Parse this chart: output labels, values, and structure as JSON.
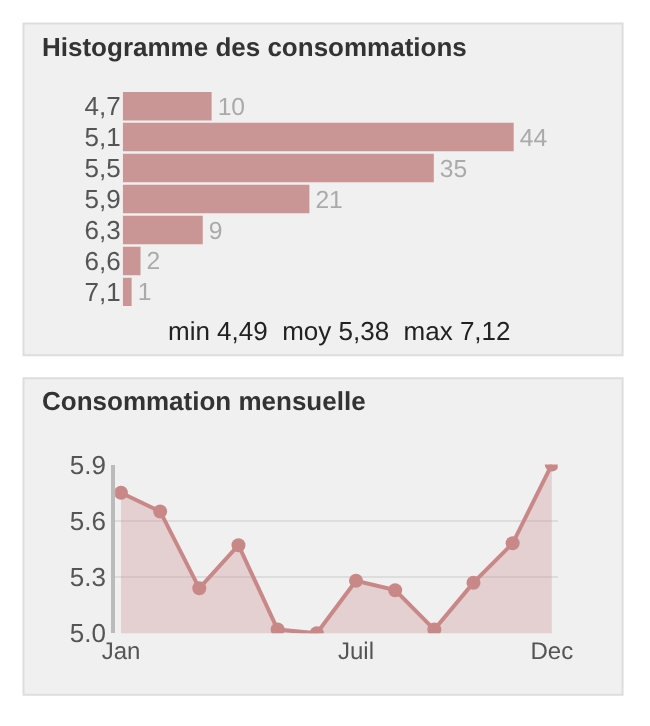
{
  "chart_data": [
    {
      "type": "bar",
      "title": "Histogramme des consommations",
      "orientation": "horizontal",
      "categories": [
        "4,7",
        "5,1",
        "5,5",
        "5,9",
        "6,3",
        "6,6",
        "7,1"
      ],
      "values": [
        10,
        44,
        35,
        21,
        9,
        2,
        1
      ],
      "color": "#c99595",
      "data_labels": true,
      "annotations": [
        "min 4,49  moy 5,38  max 7,12"
      ]
    },
    {
      "type": "area",
      "title": "Consommation mensuelle",
      "categories": [
        "Jan",
        null,
        null,
        null,
        null,
        null,
        "Juil",
        null,
        null,
        null,
        null,
        "Dec"
      ],
      "series": [
        {
          "color": "#c98888",
          "values": [
            5.75,
            5.65,
            5.24,
            5.47,
            5.02,
            5.0,
            5.28,
            5.23,
            5.02,
            5.27,
            5.48,
            5.9
          ]
        }
      ],
      "ylim": [
        5.0,
        5.9
      ],
      "yticks": [
        {
          "value": 5.0,
          "label": "5.0"
        },
        {
          "value": 5.3,
          "label": "5.3"
        },
        {
          "value": 5.6,
          "label": "5.6"
        },
        {
          "value": 5.9,
          "label": "5.9"
        }
      ],
      "grid": "y",
      "marker": "circle"
    }
  ]
}
